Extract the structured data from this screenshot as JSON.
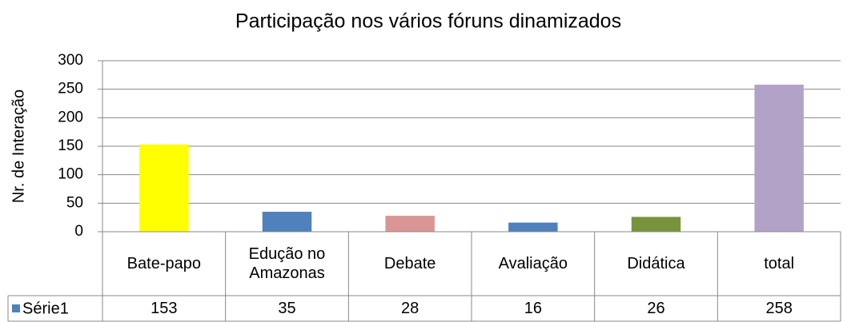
{
  "chart_data": {
    "type": "bar",
    "title": "Participação nos vários fóruns dinamizados",
    "y_label": "Nr. de Interação",
    "categories": [
      "Bate-papo",
      "Edução no Amazonas",
      "Debate",
      "Avaliação",
      "Didática",
      "total"
    ],
    "series": [
      {
        "name": "Série1",
        "color": "#4f81bd",
        "colors": [
          "#ffff00",
          "#4f81bd",
          "#d99694",
          "#4f81bd",
          "#77933c",
          "#b3a2c7"
        ],
        "values": [
          153,
          35,
          28,
          16,
          26,
          258
        ]
      }
    ],
    "ylim": [
      0,
      300
    ],
    "yticks": [
      0,
      50,
      100,
      150,
      200,
      250,
      300
    ],
    "grid": true,
    "data_table": true
  }
}
